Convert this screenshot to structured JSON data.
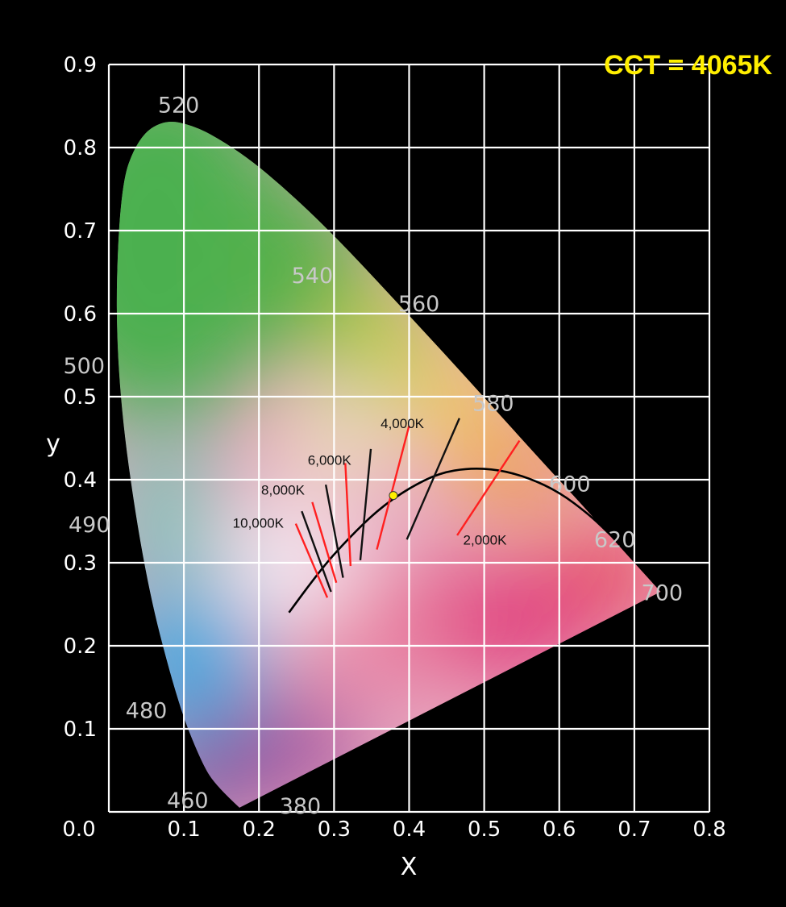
{
  "colors": {
    "background": "#000000",
    "grid": "#ffffff",
    "tick_text": "#ffffff",
    "wavelength_text": "#c8c8c8",
    "cct_text": "#ffee00",
    "locus": "#000000",
    "isotherm_red": "#ff2020",
    "isotherm_black": "#111111",
    "point_fill": "#ffee00"
  },
  "chart_data": {
    "type": "scatter",
    "title": "CCT = 4065K",
    "xlabel": "X",
    "ylabel": "y",
    "xlim": [
      0.0,
      0.8
    ],
    "ylim": [
      0.0,
      0.9
    ],
    "grid": true,
    "x_ticks": [
      0.0,
      0.1,
      0.2,
      0.3,
      0.4,
      0.5,
      0.6,
      0.7,
      0.8
    ],
    "x_tick_labels": [
      "0.0",
      "0.1",
      "0.2",
      "0.3",
      "0.4",
      "0.5",
      "0.6",
      "0.7",
      "0.8"
    ],
    "y_ticks": [
      0.0,
      0.1,
      0.2,
      0.3,
      0.4,
      0.5,
      0.6,
      0.7,
      0.8,
      0.9
    ],
    "y_tick_labels": [
      "0.0",
      "0.1",
      "0.2",
      "0.3",
      "0.4",
      "0.5",
      "0.6",
      "0.7",
      "0.8",
      "0.9"
    ],
    "spectral_locus": [
      [
        0.174,
        0.005
      ],
      [
        0.144,
        0.03
      ],
      [
        0.124,
        0.058
      ],
      [
        0.091,
        0.133
      ],
      [
        0.045,
        0.295
      ],
      [
        0.008,
        0.538
      ],
      [
        0.014,
        0.75
      ],
      [
        0.039,
        0.812
      ],
      [
        0.074,
        0.834
      ],
      [
        0.115,
        0.826
      ],
      [
        0.155,
        0.806
      ],
      [
        0.193,
        0.782
      ],
      [
        0.23,
        0.754
      ],
      [
        0.266,
        0.724
      ],
      [
        0.302,
        0.692
      ],
      [
        0.337,
        0.659
      ],
      [
        0.373,
        0.624
      ],
      [
        0.444,
        0.555
      ],
      [
        0.512,
        0.487
      ],
      [
        0.575,
        0.424
      ],
      [
        0.627,
        0.373
      ],
      [
        0.666,
        0.334
      ],
      [
        0.692,
        0.308
      ],
      [
        0.735,
        0.265
      ]
    ],
    "wavelength_labels": [
      {
        "text": "380",
        "x": 0.255,
        "y": -0.002
      },
      {
        "text": "460",
        "x": 0.105,
        "y": 0.005
      },
      {
        "text": "480",
        "x": 0.05,
        "y": 0.113
      },
      {
        "text": "490",
        "x": -0.026,
        "y": 0.337
      },
      {
        "text": "500",
        "x": -0.033,
        "y": 0.528
      },
      {
        "text": "520",
        "x": 0.093,
        "y": 0.842
      },
      {
        "text": "540",
        "x": 0.271,
        "y": 0.637
      },
      {
        "text": "560",
        "x": 0.413,
        "y": 0.603
      },
      {
        "text": "580",
        "x": 0.512,
        "y": 0.483
      },
      {
        "text": "600",
        "x": 0.614,
        "y": 0.386
      },
      {
        "text": "620",
        "x": 0.674,
        "y": 0.319
      },
      {
        "text": "700",
        "x": 0.737,
        "y": 0.255
      }
    ],
    "planckian_locus": [
      [
        0.24,
        0.24
      ],
      [
        0.28,
        0.29
      ],
      [
        0.32,
        0.33
      ],
      [
        0.36,
        0.365
      ],
      [
        0.4,
        0.39
      ],
      [
        0.44,
        0.408
      ],
      [
        0.48,
        0.414
      ],
      [
        0.52,
        0.412
      ],
      [
        0.56,
        0.402
      ],
      [
        0.6,
        0.385
      ],
      [
        0.64,
        0.358
      ],
      [
        0.67,
        0.332
      ]
    ],
    "isotherms": [
      {
        "color": "red",
        "from": [
          0.249,
          0.347
        ],
        "to": [
          0.291,
          0.258
        ]
      },
      {
        "color": "black",
        "from": [
          0.257,
          0.362
        ],
        "to": [
          0.296,
          0.265
        ]
      },
      {
        "color": "red",
        "from": [
          0.271,
          0.373
        ],
        "to": [
          0.303,
          0.276
        ]
      },
      {
        "color": "black",
        "from": [
          0.289,
          0.394
        ],
        "to": [
          0.312,
          0.282
        ]
      },
      {
        "color": "red",
        "from": [
          0.315,
          0.42
        ],
        "to": [
          0.322,
          0.296
        ]
      },
      {
        "color": "black",
        "from": [
          0.349,
          0.437
        ],
        "to": [
          0.335,
          0.303
        ]
      },
      {
        "color": "red",
        "from": [
          0.4,
          0.465
        ],
        "to": [
          0.357,
          0.316
        ]
      },
      {
        "color": "black",
        "from": [
          0.467,
          0.474
        ],
        "to": [
          0.397,
          0.328
        ]
      },
      {
        "color": "red",
        "from": [
          0.547,
          0.447
        ],
        "to": [
          0.464,
          0.333
        ]
      }
    ],
    "isotherm_labels": [
      {
        "text": "10,000K",
        "x": 0.165,
        "y": 0.342
      },
      {
        "text": "8,000K",
        "x": 0.203,
        "y": 0.382
      },
      {
        "text": "6,000K",
        "x": 0.265,
        "y": 0.418
      },
      {
        "text": "4,000K",
        "x": 0.362,
        "y": 0.462
      },
      {
        "text": "2,000K",
        "x": 0.472,
        "y": 0.322
      }
    ],
    "measured_point": {
      "x": 0.379,
      "y": 0.381,
      "label": "CCT = 4065K"
    }
  }
}
